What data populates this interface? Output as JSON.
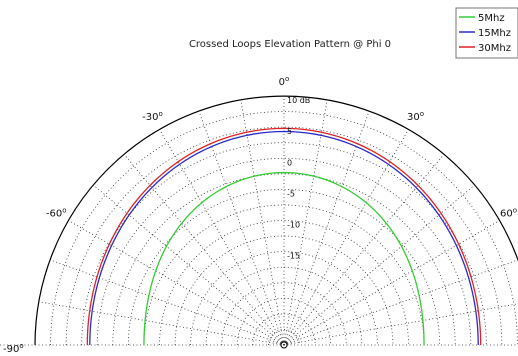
{
  "chart_data": {
    "type": "polar",
    "title": "Crossed Loops Elevation Pattern @ Phi 0",
    "angle_tick_labels": [
      "-90",
      "-60",
      "-30",
      "0",
      "30",
      "60"
    ],
    "radial_tick_labels": [
      "10 dB",
      "5",
      "0",
      "-5",
      "-10",
      "-15"
    ],
    "radial_range_db": [
      -30,
      10
    ],
    "legend_position": "top-right",
    "grid": true,
    "series": [
      {
        "name": "5Mhz",
        "color": "#33cc33",
        "gain_db_at_0": -2.3,
        "gain_db_at_90": -7.5
      },
      {
        "name": "15Mhz",
        "color": "#2b2bcc",
        "gain_db_at_0": 4.3,
        "gain_db_at_90": 1.2
      },
      {
        "name": "30Mhz",
        "color": "#dd2222",
        "gain_db_at_0": 4.8,
        "gain_db_at_90": 1.6
      }
    ]
  }
}
